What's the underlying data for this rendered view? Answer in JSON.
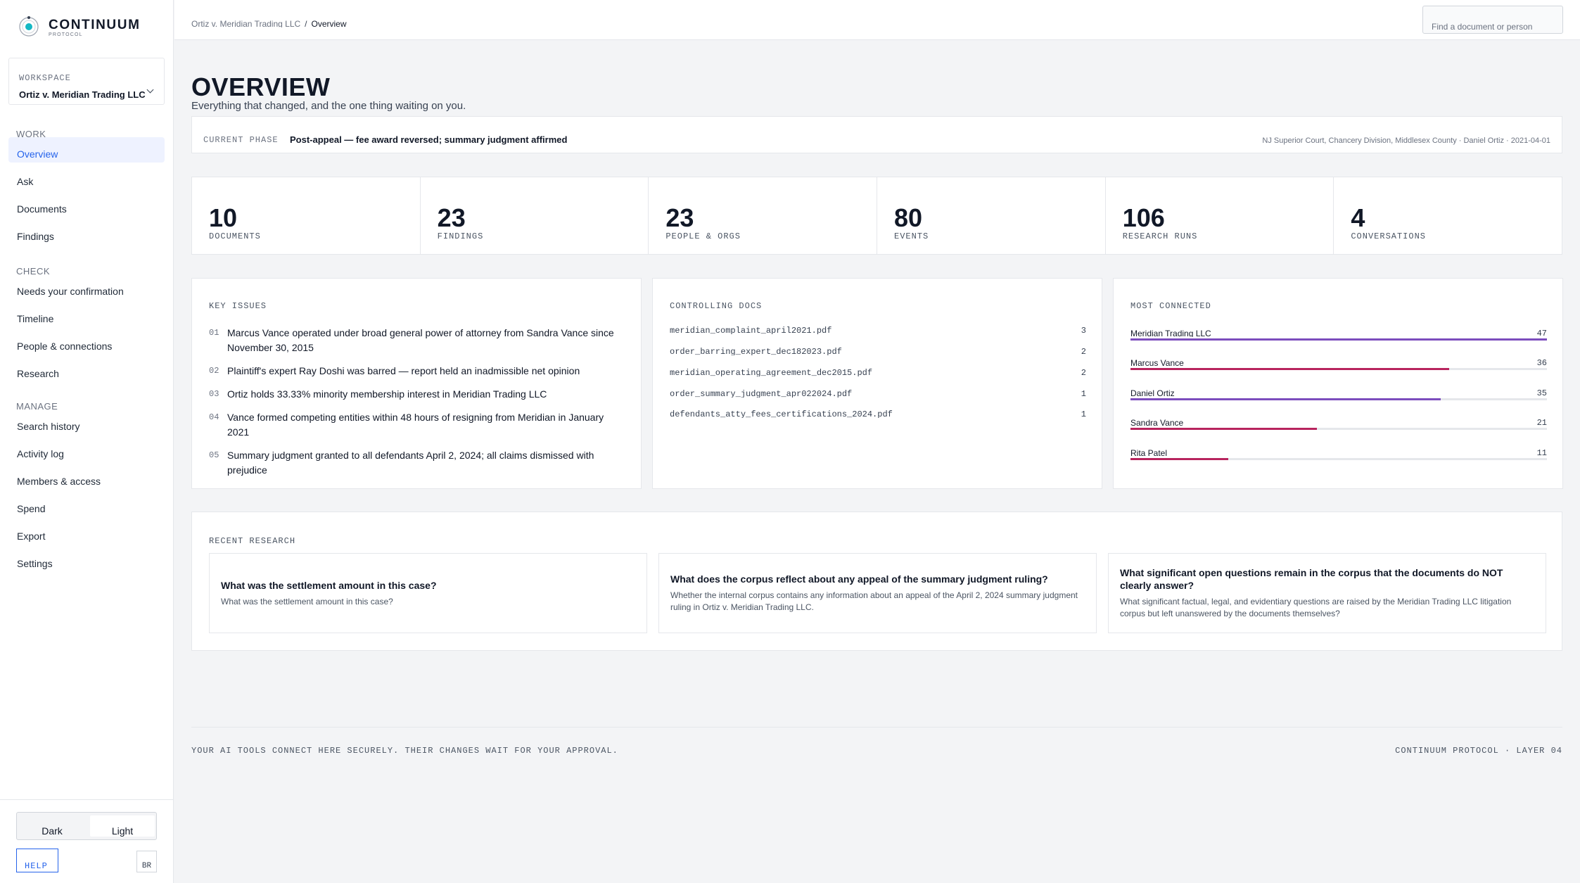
{
  "brand": {
    "name": "CONTINUUM",
    "sub": "PROTOCOL"
  },
  "workspace": {
    "label": "WORKSPACE",
    "name": "Ortiz v. Meridian Trading LLC"
  },
  "nav": {
    "work_label": "WORK",
    "work": [
      "Overview",
      "Ask",
      "Documents",
      "Findings"
    ],
    "check_label": "CHECK",
    "check": [
      "Needs your confirmation",
      "Timeline",
      "People & connections",
      "Research"
    ],
    "manage_label": "MANAGE",
    "manage": [
      "Search history",
      "Activity log",
      "Members & access",
      "Spend",
      "Export",
      "Settings"
    ]
  },
  "theme": {
    "dark": "Dark",
    "light": "Light",
    "selected": "Light"
  },
  "help_label": "HELP",
  "br_label": "BR",
  "breadcrumb": {
    "parent": "Ortiz v. Meridian Trading LLC",
    "separator": "/",
    "current": "Overview"
  },
  "search": {
    "placeholder": "Find a document or person"
  },
  "page": {
    "title": "OVERVIEW",
    "subtitle": "Everything that changed, and the one thing waiting on you."
  },
  "phase": {
    "label": "CURRENT PHASE",
    "value": "Post-appeal — fee award reversed; summary judgment affirmed",
    "meta": "NJ Superior Court, Chancery Division, Middlesex County · Daniel Ortiz · 2021-04-01"
  },
  "stats": [
    {
      "value": "10",
      "label": "DOCUMENTS"
    },
    {
      "value": "23",
      "label": "FINDINGS"
    },
    {
      "value": "23",
      "label": "PEOPLE & ORGS"
    },
    {
      "value": "80",
      "label": "EVENTS"
    },
    {
      "value": "106",
      "label": "RESEARCH RUNS"
    },
    {
      "value": "4",
      "label": "CONVERSATIONS"
    }
  ],
  "key_issues": {
    "title": "KEY ISSUES",
    "items": [
      {
        "num": "01",
        "text": "Marcus Vance operated under broad general power of attorney from Sandra Vance since November 30, 2015"
      },
      {
        "num": "02",
        "text": "Plaintiff's expert Ray Doshi was barred — report held an inadmissible net opinion"
      },
      {
        "num": "03",
        "text": "Ortiz holds 33.33% minority membership interest in Meridian Trading LLC"
      },
      {
        "num": "04",
        "text": "Vance formed competing entities within 48 hours of resigning from Meridian in January 2021"
      },
      {
        "num": "05",
        "text": "Summary judgment granted to all defendants April 2, 2024; all claims dismissed with prejudice"
      }
    ]
  },
  "controlling_docs": {
    "title": "CONTROLLING DOCS",
    "items": [
      {
        "name": "meridian_complaint_april2021.pdf",
        "count": "3"
      },
      {
        "name": "order_barring_expert_dec182023.pdf",
        "count": "2"
      },
      {
        "name": "meridian_operating_agreement_dec2015.pdf",
        "count": "2"
      },
      {
        "name": "order_summary_judgment_apr022024.pdf",
        "count": "1"
      },
      {
        "name": "defendants_atty_fees_certifications_2024.pdf",
        "count": "1"
      }
    ]
  },
  "most_connected": {
    "title": "MOST CONNECTED",
    "max": 47,
    "items": [
      {
        "name": "Meridian Trading LLC",
        "count": 47,
        "color": "#7c4dbd"
      },
      {
        "name": "Marcus Vance",
        "count": 36,
        "color": "#b8245e"
      },
      {
        "name": "Daniel Ortiz",
        "count": 35,
        "color": "#7c4dbd"
      },
      {
        "name": "Sandra Vance",
        "count": 21,
        "color": "#b8245e"
      },
      {
        "name": "Rita Patel",
        "count": 11,
        "color": "#b8245e"
      }
    ]
  },
  "recent_research": {
    "title": "RECENT RESEARCH",
    "items": [
      {
        "question": "What was the settlement amount in this case?",
        "detail": "What was the settlement amount in this case?"
      },
      {
        "question": "What does the corpus reflect about any appeal of the summary judgment ruling?",
        "detail": "Whether the internal corpus contains any information about an appeal of the April 2, 2024 summary judgment ruling in Ortiz v. Meridian Trading LLC."
      },
      {
        "question": "What significant open questions remain in the corpus that the documents do NOT clearly answer?",
        "detail": "What significant factual, legal, and evidentiary questions are raised by the Meridian Trading LLC litigation corpus but left unanswered by the documents themselves?"
      }
    ]
  },
  "footer": {
    "left": "YOUR AI TOOLS CONNECT HERE SECURELY. THEIR CHANGES WAIT FOR YOUR APPROVAL.",
    "right": "CONTINUUM PROTOCOL · LAYER 04"
  },
  "colors": {
    "accent": "#2563eb",
    "purple": "#7c4dbd",
    "magenta": "#b8245e",
    "logo_teal": "#14b8c4"
  }
}
